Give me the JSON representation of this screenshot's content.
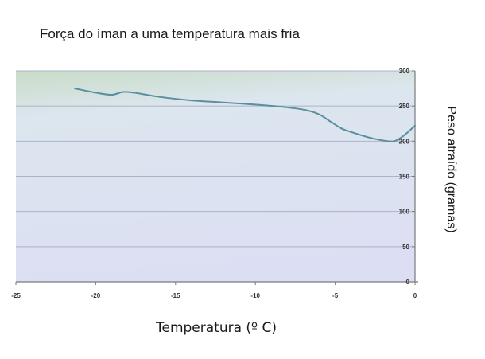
{
  "colors": {
    "plot_bg_top": "#c9dcc7",
    "plot_bg_bottom": "#dcdff3",
    "gridline": "#aeb1cc",
    "line": "#5b8f9e",
    "axis": "#7a7a7a",
    "text": "#1a1a1a"
  },
  "chart_data": {
    "type": "line",
    "title": "Força do íman a uma temperatura mais fria",
    "xlabel": "Temperatura (º C)",
    "ylabel": "Peso atraído (gramas)",
    "xlim": [
      -25,
      0
    ],
    "ylim": [
      0,
      300
    ],
    "xticks": [
      "-25",
      "-20",
      "-15",
      "-10",
      "-5",
      "0"
    ],
    "yticks": [
      "0",
      "50",
      "100",
      "150",
      "200",
      "250",
      "300"
    ],
    "grid": true,
    "y_axis_side": "right",
    "series": [
      {
        "x": [
          -21.3,
          -20,
          -19,
          -18.3,
          -17.6,
          -16,
          -14,
          -12,
          -10,
          -8,
          -6.8,
          -6,
          -5.3,
          -4.6,
          -4,
          -3,
          -2,
          -1.3,
          -0.7,
          0
        ],
        "y": [
          275,
          269,
          266,
          270,
          269,
          263,
          258,
          255,
          252,
          248,
          244,
          238,
          228,
          218,
          213,
          206,
          201,
          200,
          208,
          222
        ]
      }
    ]
  }
}
